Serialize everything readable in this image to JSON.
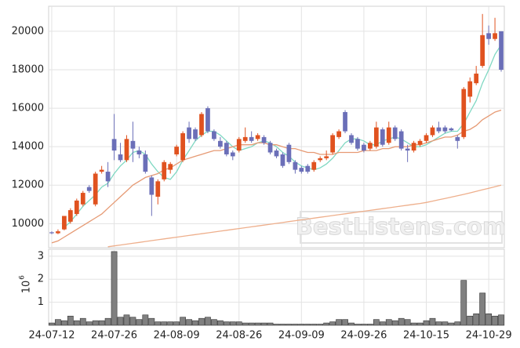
{
  "chart_data": {
    "type": "candlestick",
    "categories": [
      "24-07-12",
      null,
      null,
      null,
      null,
      null,
      null,
      null,
      null,
      null,
      "24-07-26",
      null,
      null,
      null,
      null,
      null,
      null,
      null,
      null,
      null,
      "24-08-09",
      null,
      null,
      null,
      null,
      null,
      null,
      null,
      null,
      null,
      "24-08-26",
      null,
      null,
      null,
      null,
      null,
      null,
      null,
      null,
      null,
      "24-09-09",
      null,
      null,
      null,
      null,
      null,
      null,
      null,
      null,
      null,
      "24-09-26",
      null,
      null,
      null,
      null,
      null,
      null,
      null,
      null,
      null,
      "24-10-15",
      null,
      null,
      null,
      null,
      null,
      null,
      null,
      null,
      null,
      "24-10-29",
      null,
      null
    ],
    "open": [
      9550,
      9500,
      9700,
      10100,
      10500,
      11000,
      11900,
      11000,
      12700,
      12700,
      14400,
      13600,
      13300,
      14300,
      13800,
      13600,
      12400,
      11400,
      12300,
      12800,
      13600,
      13300,
      15000,
      14900,
      14600,
      16000,
      14800,
      14300,
      14200,
      13700,
      13800,
      14300,
      14500,
      14400,
      14500,
      14200,
      13800,
      13600,
      14100,
      13200,
      12900,
      13000,
      12800,
      13300,
      13400,
      13700,
      14500,
      15800,
      14600,
      14400,
      14100,
      13900,
      14000,
      14900,
      14200,
      15000,
      14800,
      13900,
      13800,
      14100,
      14300,
      14600,
      15000,
      15000,
      14950,
      14500,
      14500,
      16600,
      17300,
      18200,
      19900,
      19600,
      20000
    ],
    "high": [
      9600,
      9700,
      10400,
      10800,
      11300,
      11700,
      12000,
      12700,
      13000,
      13200,
      15700,
      14200,
      14600,
      15300,
      14000,
      13800,
      12500,
      12300,
      13300,
      13200,
      14100,
      14800,
      15300,
      15000,
      15800,
      16100,
      14900,
      14500,
      14300,
      13800,
      14500,
      15000,
      14800,
      14700,
      14600,
      14300,
      13900,
      13700,
      14200,
      13300,
      13000,
      13100,
      13300,
      13500,
      13800,
      14700,
      14900,
      15900,
      14700,
      14500,
      14200,
      14300,
      15300,
      15000,
      15300,
      15100,
      14900,
      14100,
      14300,
      14400,
      14700,
      15100,
      15300,
      15100,
      15000,
      14600,
      17100,
      17600,
      18200,
      20900,
      20300,
      20700,
      20000
    ],
    "low": [
      9450,
      9450,
      9650,
      10000,
      10400,
      10900,
      11600,
      10900,
      12600,
      11900,
      13300,
      13200,
      13200,
      13200,
      13400,
      12600,
      10400,
      11000,
      12200,
      12600,
      13500,
      13200,
      14200,
      14300,
      14500,
      14700,
      14300,
      13900,
      13500,
      13300,
      13700,
      14200,
      14200,
      14300,
      14100,
      13600,
      13400,
      12900,
      13100,
      12600,
      12600,
      12600,
      12700,
      13200,
      13300,
      13600,
      14400,
      14700,
      14100,
      13800,
      13700,
      13800,
      13900,
      14000,
      14100,
      14300,
      13800,
      13200,
      13700,
      14000,
      14200,
      14500,
      14700,
      14700,
      14800,
      13900,
      14400,
      16300,
      17200,
      18100,
      19300,
      19500,
      17900
    ],
    "close": [
      9500,
      9600,
      10400,
      10700,
      11200,
      11600,
      11700,
      12600,
      12800,
      12200,
      13800,
      13300,
      14400,
      13900,
      13600,
      12700,
      11500,
      12200,
      13200,
      13100,
      14000,
      14700,
      14400,
      14400,
      15700,
      14800,
      14400,
      14000,
      13600,
      13500,
      14400,
      14500,
      14300,
      14600,
      14200,
      13700,
      13500,
      13000,
      13200,
      12800,
      12700,
      12700,
      13200,
      13400,
      13500,
      14600,
      14800,
      14800,
      14200,
      13900,
      13800,
      14200,
      15000,
      14100,
      15000,
      14400,
      13900,
      13800,
      14200,
      14300,
      14600,
      15000,
      14800,
      14800,
      14850,
      14300,
      17000,
      17400,
      17800,
      19800,
      19600,
      19900,
      18000
    ],
    "up_color": "#e0521f",
    "down_color": "#6b6fb8",
    "ma_lines": [
      {
        "color": "#7fd8c2",
        "values": [
          null,
          null,
          9800,
          10100,
          10500,
          10900,
          11200,
          11500,
          11900,
          12100,
          12600,
          13000,
          13300,
          13700,
          13800,
          13600,
          13100,
          12700,
          12400,
          12300,
          12700,
          13300,
          13800,
          14300,
          14600,
          14800,
          14800,
          14600,
          14300,
          14000,
          13800,
          13900,
          14000,
          14200,
          14300,
          14200,
          14000,
          13700,
          13500,
          13200,
          13000,
          12900,
          12800,
          12900,
          13100,
          13400,
          13800,
          14200,
          14400,
          14400,
          14300,
          14100,
          14100,
          14300,
          14400,
          14500,
          14400,
          14200,
          14000,
          14000,
          14100,
          14300,
          14500,
          14700,
          14800,
          14800,
          15200,
          15800,
          16400,
          17300,
          18000,
          18800,
          19300
        ]
      },
      {
        "color": "#e69a74",
        "values": [
          9000,
          9100,
          9300,
          9500,
          9700,
          9900,
          10100,
          10300,
          10500,
          10800,
          11100,
          11400,
          11700,
          12000,
          12200,
          12400,
          12500,
          12600,
          12800,
          12900,
          13100,
          13300,
          13400,
          13500,
          13600,
          13700,
          13800,
          13800,
          13900,
          14000,
          14100,
          14100,
          14100,
          14200,
          14200,
          14100,
          14100,
          14000,
          13900,
          13900,
          13800,
          13700,
          13700,
          13600,
          13600,
          13600,
          13700,
          13700,
          13700,
          13700,
          13800,
          13800,
          13800,
          13900,
          13900,
          14000,
          14000,
          14000,
          14100,
          14100,
          14200,
          14300,
          14400,
          14500,
          14500,
          14600,
          14800,
          14900,
          15100,
          15400,
          15600,
          15800,
          15900
        ]
      },
      {
        "color": "#eeaf8c",
        "values": [
          null,
          null,
          null,
          null,
          null,
          null,
          null,
          null,
          null,
          8800,
          8845,
          8890,
          8935,
          8980,
          9025,
          9070,
          9115,
          9160,
          9205,
          9250,
          9295,
          9340,
          9385,
          9430,
          9475,
          9520,
          9565,
          9610,
          9655,
          9700,
          9745,
          9790,
          9835,
          9880,
          9925,
          9970,
          10015,
          10060,
          10105,
          10150,
          10195,
          10240,
          10285,
          10330,
          10375,
          10420,
          10465,
          10510,
          10555,
          10600,
          10645,
          10690,
          10735,
          10780,
          10825,
          10870,
          10915,
          10960,
          11005,
          11050,
          11100,
          11170,
          11240,
          11310,
          11380,
          11450,
          11520,
          11600,
          11680,
          11760,
          11840,
          11920,
          12000
        ]
      }
    ],
    "ylim": [
      8750,
      21300
    ],
    "yticks": [
      10000,
      12000,
      14000,
      16000,
      18000,
      20000
    ],
    "volume": [
      0.1,
      0.25,
      0.2,
      0.4,
      0.2,
      0.3,
      0.15,
      0.2,
      0.2,
      0.3,
      3.2,
      0.35,
      0.45,
      0.35,
      0.25,
      0.45,
      0.3,
      0.15,
      0.15,
      0.15,
      0.15,
      0.35,
      0.25,
      0.2,
      0.3,
      0.35,
      0.25,
      0.2,
      0.15,
      0.15,
      0.15,
      0.1,
      0.1,
      0.1,
      0.1,
      0.1,
      0.05,
      0.05,
      0.05,
      0.05,
      0.05,
      0.05,
      0.05,
      0.05,
      0.1,
      0.15,
      0.25,
      0.25,
      0.1,
      0.05,
      0.05,
      0.05,
      0.25,
      0.15,
      0.25,
      0.2,
      0.3,
      0.25,
      0.1,
      0.1,
      0.2,
      0.3,
      0.15,
      0.15,
      0.1,
      0.15,
      1.95,
      0.4,
      0.5,
      1.4,
      0.5,
      0.4,
      0.45
    ],
    "volume_color": "#808080",
    "y2lim": [
      0,
      3.3
    ],
    "y2ticks": [
      1,
      2,
      3
    ],
    "y2_label_base": "10",
    "y2_label_exponent": "6",
    "watermark": "BestListens.com",
    "grid": true
  }
}
